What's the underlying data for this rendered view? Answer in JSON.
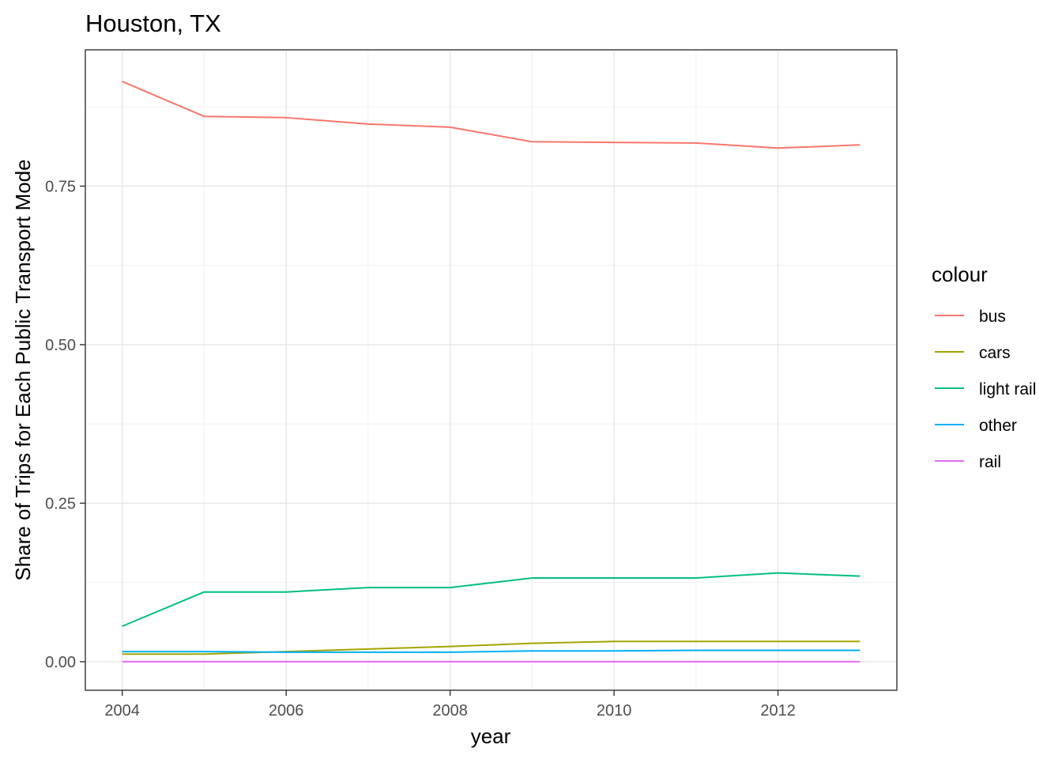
{
  "chart_data": {
    "type": "line",
    "title": "Houston, TX",
    "xlabel": "year",
    "ylabel": "Share of Trips for Each Public Transport Mode",
    "xlim": [
      2003.55,
      2013.45
    ],
    "ylim": [
      -0.045,
      0.965
    ],
    "x_ticks": [
      2004,
      2006,
      2008,
      2010,
      2012
    ],
    "x_tick_labels": [
      "2004",
      "2006",
      "2008",
      "2010",
      "2012"
    ],
    "y_ticks": [
      0,
      0.25,
      0.5,
      0.75
    ],
    "y_tick_labels": [
      "0.00",
      "0.25",
      "0.50",
      "0.75"
    ],
    "grid": true,
    "legend": {
      "title": "colour",
      "position": "right"
    },
    "x": [
      2004,
      2005,
      2006,
      2007,
      2008,
      2009,
      2010,
      2011,
      2012,
      2013
    ],
    "series": [
      {
        "name": "bus",
        "color": "#F8766D",
        "values": [
          0.915,
          0.86,
          0.858,
          0.848,
          0.843,
          0.82,
          0.819,
          0.818,
          0.81,
          0.815
        ]
      },
      {
        "name": "cars",
        "color": "#A3A500",
        "values": [
          0.012,
          0.012,
          0.016,
          0.02,
          0.024,
          0.029,
          0.032,
          0.032,
          0.032,
          0.032
        ]
      },
      {
        "name": "light rail",
        "color": "#00BF7D",
        "values": [
          0.056,
          0.11,
          0.11,
          0.117,
          0.117,
          0.132,
          0.132,
          0.132,
          0.14,
          0.135
        ]
      },
      {
        "name": "other",
        "color": "#00B0F6",
        "values": [
          0.016,
          0.016,
          0.015,
          0.015,
          0.015,
          0.017,
          0.017,
          0.018,
          0.018,
          0.018
        ]
      },
      {
        "name": "rail",
        "color": "#E76BF3",
        "values": [
          0.0,
          0.0,
          0.0,
          0.0,
          0.0,
          0.0,
          0.0,
          0.0,
          0.0,
          0.0
        ]
      }
    ]
  }
}
